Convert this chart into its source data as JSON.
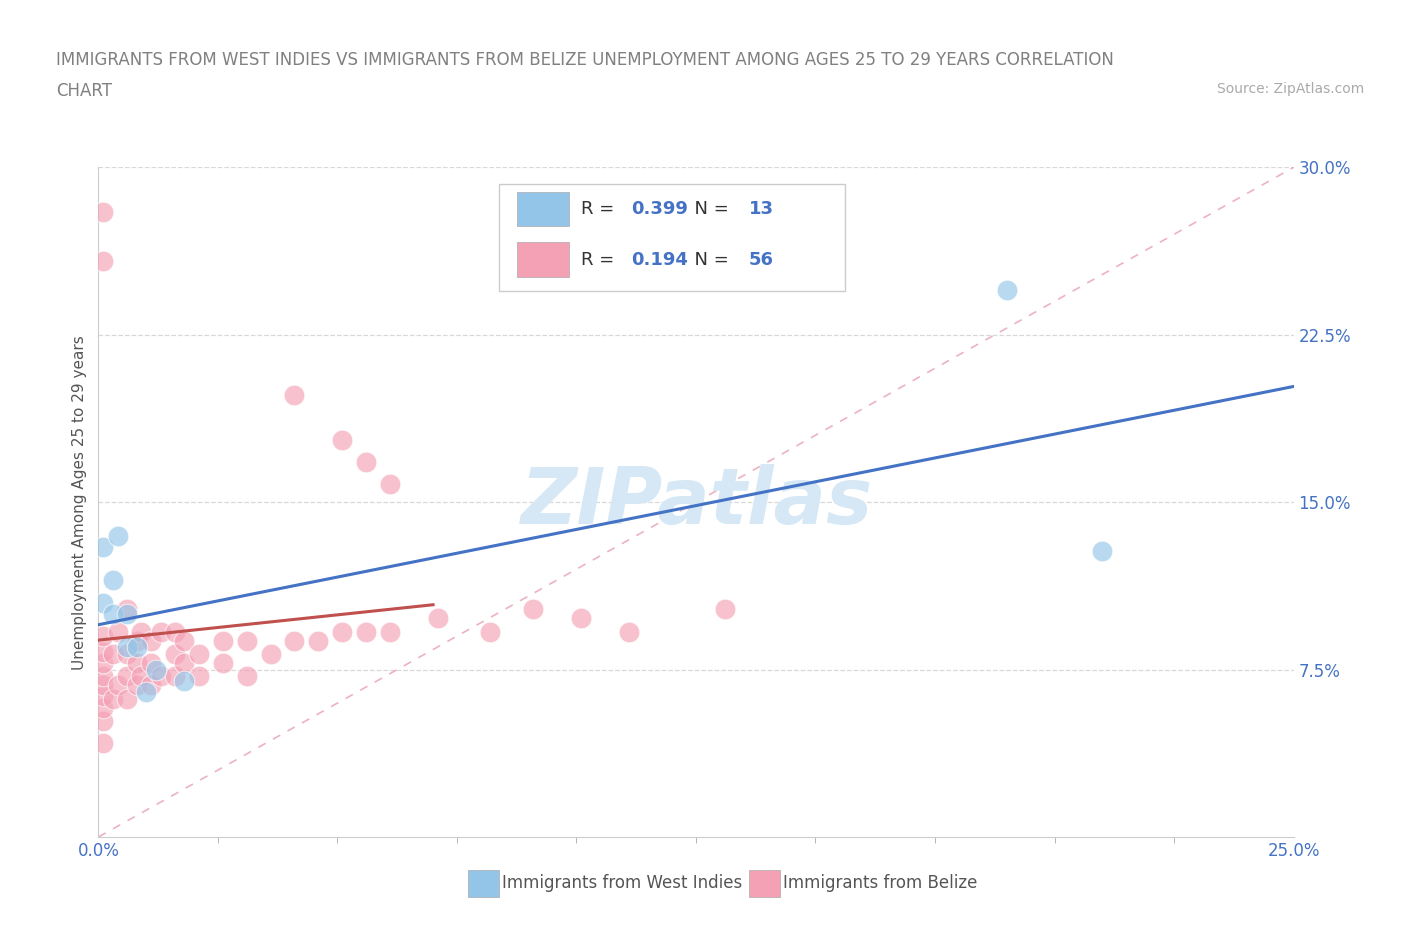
{
  "title_line1": "IMMIGRANTS FROM WEST INDIES VS IMMIGRANTS FROM BELIZE UNEMPLOYMENT AMONG AGES 25 TO 29 YEARS CORRELATION",
  "title_line2": "CHART",
  "source_text": "Source: ZipAtlas.com",
  "ylabel": "Unemployment Among Ages 25 to 29 years",
  "xmin": 0.0,
  "xmax": 0.25,
  "ymin": 0.0,
  "ymax": 0.3,
  "yticks": [
    0.075,
    0.15,
    0.225,
    0.3
  ],
  "ytick_labels": [
    "7.5%",
    "15.0%",
    "22.5%",
    "30.0%"
  ],
  "series1_name": "Immigrants from West Indies",
  "series1_color": "#92c5e8",
  "series2_name": "Immigrants from Belize",
  "series2_color": "#f4a0b5",
  "series1_R": "0.399",
  "series1_N": "13",
  "series2_R": "0.194",
  "series2_N": "56",
  "trend1_color": "#4472c4",
  "trend2_color": "#c0504d",
  "diag_color": "#e8a0b0",
  "background_color": "#ffffff",
  "grid_color": "#d8d8d8",
  "title_color": "#808080",
  "axis_color": "#4472c4",
  "watermark_text": "ZIPatlas",
  "watermark_color": "#d6e8f5",
  "west_indies_x": [
    0.001,
    0.001,
    0.003,
    0.003,
    0.004,
    0.006,
    0.006,
    0.008,
    0.01,
    0.012,
    0.018,
    0.21,
    0.19
  ],
  "west_indies_y": [
    0.105,
    0.13,
    0.1,
    0.115,
    0.135,
    0.1,
    0.085,
    0.085,
    0.065,
    0.075,
    0.07,
    0.128,
    0.245
  ],
  "belize_x": [
    0.001,
    0.001,
    0.001,
    0.001,
    0.001,
    0.001,
    0.001,
    0.001,
    0.001,
    0.001,
    0.001,
    0.003,
    0.003,
    0.004,
    0.004,
    0.006,
    0.006,
    0.006,
    0.006,
    0.008,
    0.008,
    0.008,
    0.009,
    0.009,
    0.011,
    0.011,
    0.011,
    0.013,
    0.013,
    0.016,
    0.016,
    0.016,
    0.018,
    0.018,
    0.021,
    0.021,
    0.026,
    0.026,
    0.031,
    0.031,
    0.036,
    0.041,
    0.046,
    0.051,
    0.056,
    0.061,
    0.071,
    0.082,
    0.091,
    0.101,
    0.111,
    0.131,
    0.041,
    0.051,
    0.056,
    0.061
  ],
  "belize_y": [
    0.042,
    0.052,
    0.058,
    0.063,
    0.068,
    0.072,
    0.078,
    0.083,
    0.09,
    0.28,
    0.258,
    0.062,
    0.082,
    0.068,
    0.092,
    0.062,
    0.072,
    0.082,
    0.102,
    0.068,
    0.078,
    0.088,
    0.072,
    0.092,
    0.068,
    0.078,
    0.088,
    0.072,
    0.092,
    0.072,
    0.082,
    0.092,
    0.078,
    0.088,
    0.072,
    0.082,
    0.078,
    0.088,
    0.072,
    0.088,
    0.082,
    0.088,
    0.088,
    0.092,
    0.092,
    0.092,
    0.098,
    0.092,
    0.102,
    0.098,
    0.092,
    0.102,
    0.198,
    0.178,
    0.168,
    0.158
  ]
}
